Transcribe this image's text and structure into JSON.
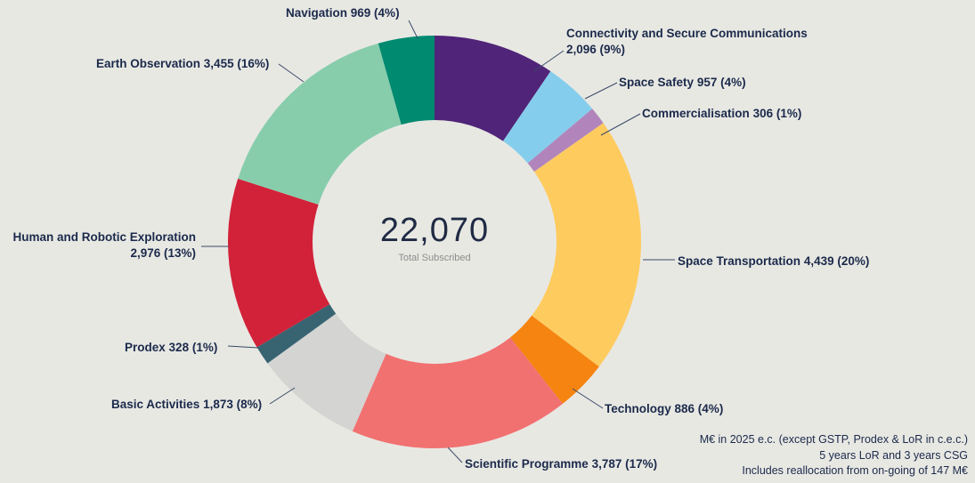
{
  "chart_data": {
    "type": "pie",
    "subtype": "donut",
    "title": "",
    "legend": "none (outside labels with leader lines)",
    "center": {
      "total_label": "22,070",
      "total_value": 22070,
      "subtitle": "Total Subscribed"
    },
    "segments": [
      {
        "id": "connectivity",
        "name": "Connectivity and Secure Communications",
        "value": 2096,
        "percent": 9,
        "value_label": "2,096 (9%)",
        "color": "#502478"
      },
      {
        "id": "space_safety",
        "name": "Space Safety",
        "value": 957,
        "percent": 4,
        "value_label": "957 (4%)",
        "color": "#85cdec"
      },
      {
        "id": "commercialisation",
        "name": "Commercialisation",
        "value": 306,
        "percent": 1,
        "value_label": "306 (1%)",
        "color": "#b185bc"
      },
      {
        "id": "space_transportation",
        "name": "Space Transportation",
        "value": 4439,
        "percent": 20,
        "value_label": "4,439 (20%)",
        "color": "#fecb5f"
      },
      {
        "id": "technology",
        "name": "Technology",
        "value": 886,
        "percent": 4,
        "value_label": "886 (4%)",
        "color": "#f58410"
      },
      {
        "id": "scientific_programme",
        "name": "Scientific Programme",
        "value": 3787,
        "percent": 17,
        "value_label": "3,787 (17%)",
        "color": "#f17171"
      },
      {
        "id": "basic_activities",
        "name": "Basic Activities",
        "value": 1873,
        "percent": 8,
        "value_label": "1,873 (8%)",
        "color": "#d4d4d2"
      },
      {
        "id": "prodex",
        "name": "Prodex",
        "value": 328,
        "percent": 1,
        "value_label": "328 (1%)",
        "color": "#386472"
      },
      {
        "id": "human_robotic_exploration",
        "name": "Human and Robotic Exploration",
        "value": 2976,
        "percent": 13,
        "value_label": "2,976 (13%)",
        "color": "#d22239"
      },
      {
        "id": "earth_observation",
        "name": "Earth Observation",
        "value": 3455,
        "percent": 16,
        "value_label": "3,455 (16%)",
        "color": "#87cdac"
      },
      {
        "id": "navigation",
        "name": "Navigation",
        "value": 969,
        "percent": 4,
        "value_label": "969 (4%)",
        "color": "#008a70"
      }
    ],
    "footnotes": [
      "M€ in 2025 e.c. (except GSTP, Prodex & LoR in c.e.c.)",
      "5 years LoR and 3 years CSG",
      "Includes reallocation from on-going of 147 M€"
    ]
  },
  "colors": {
    "background": "#e8e8e3",
    "label_text": "#1b2a4b",
    "center_total": "#1f2a44",
    "center_subtitle": "#8c8c8c",
    "leader_line": "#3a4a66"
  }
}
